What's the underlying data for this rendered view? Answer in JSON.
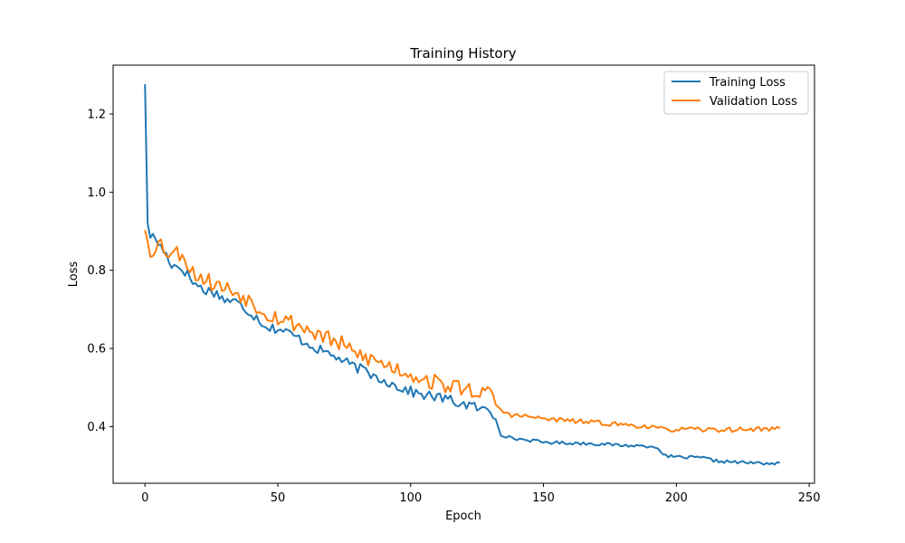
{
  "chart_data": {
    "type": "line",
    "title": "Training History",
    "xlabel": "Epoch",
    "ylabel": "Loss",
    "xlim": [
      -12,
      252
    ],
    "ylim": [
      0.255,
      1.325
    ],
    "xticks": [
      0,
      50,
      100,
      150,
      200,
      250
    ],
    "yticks": [
      0.4,
      0.6,
      0.8,
      1.0,
      1.2
    ],
    "ytick_labels": [
      "0.4",
      "0.6",
      "0.8",
      "1.0",
      "1.2"
    ],
    "grid": false,
    "legend_position": "top-right",
    "series": [
      {
        "name": "Training Loss",
        "color": "#1f77b4",
        "anchors": [
          [
            0,
            1.276
          ],
          [
            1,
            0.92
          ],
          [
            2,
            0.89
          ],
          [
            4,
            0.88
          ],
          [
            6,
            0.86
          ],
          [
            8,
            0.84
          ],
          [
            10,
            0.815
          ],
          [
            14,
            0.805
          ],
          [
            16,
            0.79
          ],
          [
            18,
            0.77
          ],
          [
            22,
            0.75
          ],
          [
            26,
            0.745
          ],
          [
            30,
            0.725
          ],
          [
            34,
            0.72
          ],
          [
            38,
            0.7
          ],
          [
            42,
            0.68
          ],
          [
            46,
            0.655
          ],
          [
            50,
            0.65
          ],
          [
            54,
            0.64
          ],
          [
            58,
            0.625
          ],
          [
            62,
            0.61
          ],
          [
            66,
            0.595
          ],
          [
            70,
            0.585
          ],
          [
            74,
            0.57
          ],
          [
            78,
            0.555
          ],
          [
            82,
            0.545
          ],
          [
            86,
            0.53
          ],
          [
            90,
            0.52
          ],
          [
            94,
            0.505
          ],
          [
            98,
            0.495
          ],
          [
            102,
            0.485
          ],
          [
            106,
            0.48
          ],
          [
            110,
            0.475
          ],
          [
            114,
            0.47
          ],
          [
            118,
            0.46
          ],
          [
            122,
            0.455
          ],
          [
            126,
            0.445
          ],
          [
            130,
            0.44
          ],
          [
            132,
            0.42
          ],
          [
            134,
            0.38
          ],
          [
            138,
            0.37
          ],
          [
            145,
            0.365
          ],
          [
            150,
            0.36
          ],
          [
            160,
            0.358
          ],
          [
            170,
            0.356
          ],
          [
            180,
            0.352
          ],
          [
            190,
            0.35
          ],
          [
            193,
            0.348
          ],
          [
            195,
            0.325
          ],
          [
            200,
            0.322
          ],
          [
            210,
            0.32
          ],
          [
            215,
            0.312
          ],
          [
            225,
            0.308
          ],
          [
            239,
            0.305
          ]
        ],
        "noise": 0.013,
        "noise_until": 132,
        "noise_after": 0.004,
        "seed": 17
      },
      {
        "name": "Validation Loss",
        "color": "#ff7f0e",
        "anchors": [
          [
            0,
            0.903
          ],
          [
            2,
            0.845
          ],
          [
            4,
            0.865
          ],
          [
            6,
            0.87
          ],
          [
            8,
            0.85
          ],
          [
            10,
            0.845
          ],
          [
            14,
            0.845
          ],
          [
            16,
            0.82
          ],
          [
            18,
            0.795
          ],
          [
            22,
            0.78
          ],
          [
            26,
            0.765
          ],
          [
            30,
            0.755
          ],
          [
            34,
            0.745
          ],
          [
            38,
            0.73
          ],
          [
            42,
            0.71
          ],
          [
            46,
            0.69
          ],
          [
            50,
            0.68
          ],
          [
            54,
            0.67
          ],
          [
            58,
            0.66
          ],
          [
            62,
            0.645
          ],
          [
            66,
            0.635
          ],
          [
            70,
            0.62
          ],
          [
            74,
            0.61
          ],
          [
            78,
            0.59
          ],
          [
            82,
            0.58
          ],
          [
            86,
            0.57
          ],
          [
            90,
            0.56
          ],
          [
            94,
            0.55
          ],
          [
            98,
            0.54
          ],
          [
            102,
            0.53
          ],
          [
            106,
            0.52
          ],
          [
            110,
            0.51
          ],
          [
            114,
            0.505
          ],
          [
            118,
            0.5
          ],
          [
            122,
            0.495
          ],
          [
            126,
            0.49
          ],
          [
            130,
            0.48
          ],
          [
            132,
            0.46
          ],
          [
            134,
            0.44
          ],
          [
            138,
            0.43
          ],
          [
            145,
            0.425
          ],
          [
            150,
            0.42
          ],
          [
            160,
            0.415
          ],
          [
            170,
            0.41
          ],
          [
            180,
            0.405
          ],
          [
            190,
            0.4
          ],
          [
            195,
            0.392
          ],
          [
            200,
            0.393
          ],
          [
            210,
            0.392
          ],
          [
            220,
            0.392
          ],
          [
            239,
            0.395
          ]
        ],
        "noise": 0.022,
        "noise_until": 132,
        "noise_after": 0.006,
        "seed": 53
      }
    ]
  }
}
